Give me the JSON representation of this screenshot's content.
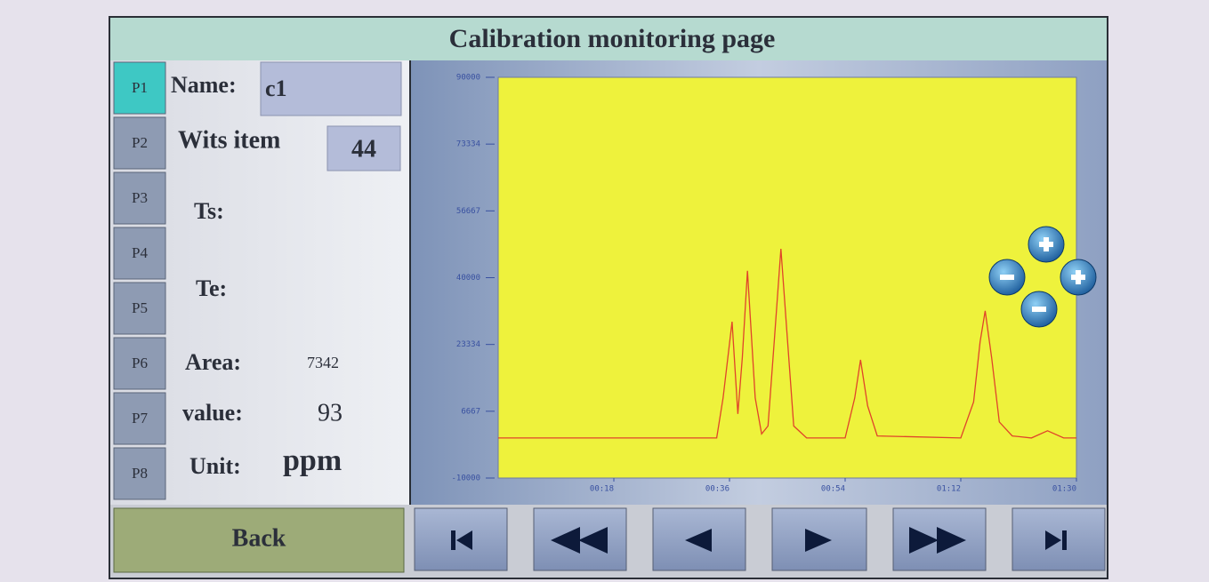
{
  "header": {
    "title": "Calibration monitoring page"
  },
  "tabs": [
    "P1",
    "P2",
    "P3",
    "P4",
    "P5",
    "P6",
    "P7",
    "P8"
  ],
  "fields": {
    "name_label": "Name:",
    "name_value": "c1",
    "wits_label": "Wits item",
    "wits_value": 44,
    "ts_label": "Ts:",
    "te_label": "Te:",
    "area_label": "Area:",
    "area_value": 7342,
    "value_label": "value:",
    "value_value": 93,
    "unit_label": "Unit:",
    "unit_value": "ppm"
  },
  "back_button": "Back",
  "chart_data": {
    "type": "line",
    "x": [
      0,
      34,
      35,
      36.4,
      37.3,
      38,
      38.8,
      40,
      41,
      42,
      43,
      44,
      45,
      46,
      48,
      54,
      55.5,
      56.4,
      57.5,
      59,
      72,
      74,
      75,
      75.8,
      76.8,
      78,
      80,
      83,
      85.5,
      88,
      90
    ],
    "series": [
      {
        "color": "#e0442a",
        "values": [
          0,
          0,
          10000,
          29000,
          6000,
          20000,
          41700,
          10000,
          1000,
          3000,
          25000,
          47200,
          25000,
          3000,
          0,
          0,
          10000,
          19500,
          8000,
          500,
          0,
          9000,
          24000,
          31700,
          20000,
          4000,
          500,
          0,
          1800,
          0,
          0
        ]
      }
    ],
    "xlim": [
      0,
      90
    ],
    "xticks": [
      {
        "value": 18,
        "label": "00:18"
      },
      {
        "value": 36,
        "label": "00:36"
      },
      {
        "value": 54,
        "label": "00:54"
      },
      {
        "value": 72,
        "label": "01:12"
      },
      {
        "value": 90,
        "label": "01:30"
      }
    ],
    "ylim": [
      -10000,
      90000
    ],
    "yticks": [
      90000,
      73334,
      56667,
      40000,
      23334,
      6667,
      -10000
    ],
    "plot_color": "#eef23c"
  }
}
